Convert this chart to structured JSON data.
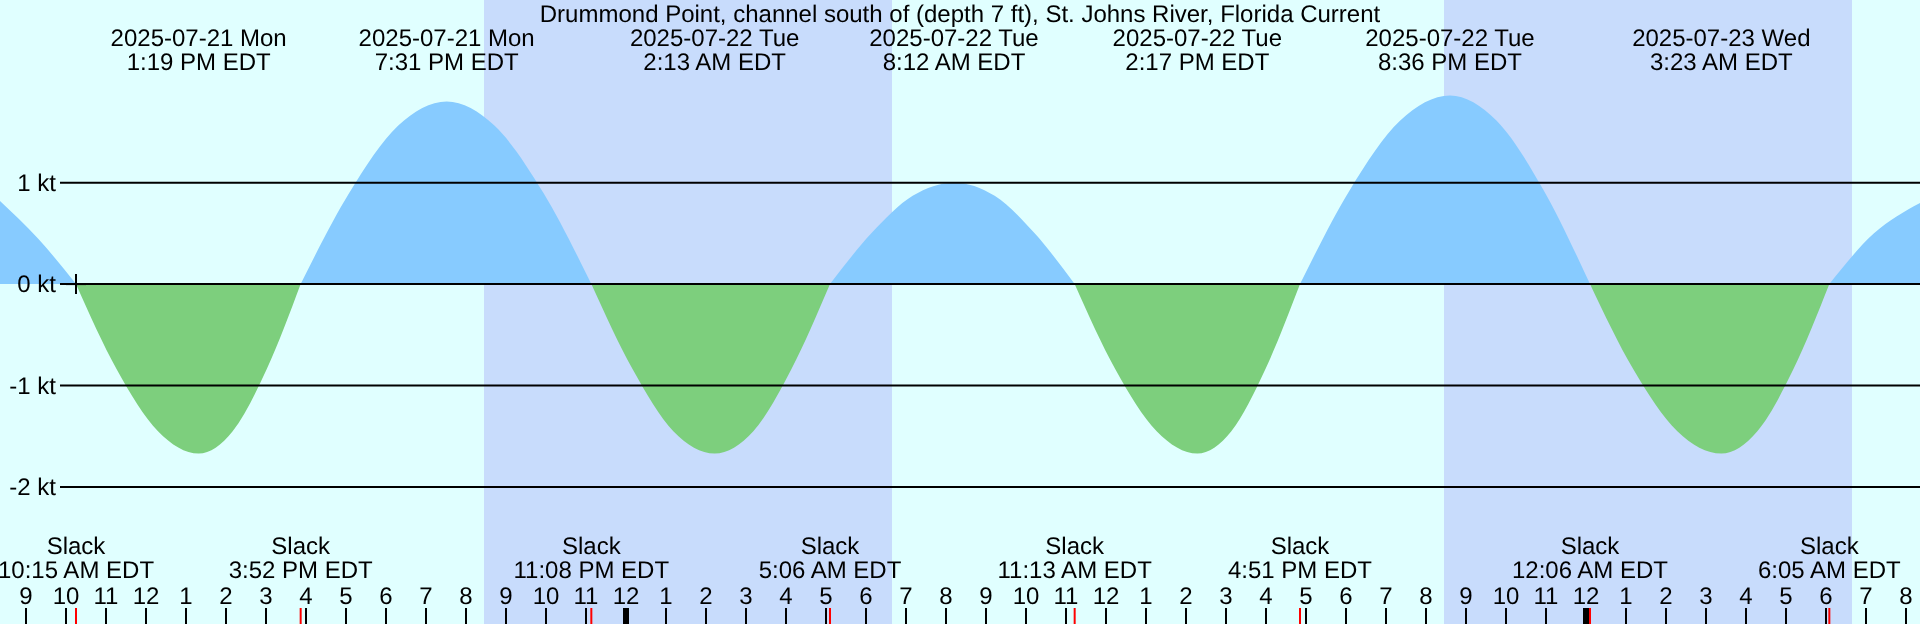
{
  "chart_data": {
    "type": "area",
    "title": "Drummond Point, channel south of (depth 7 ft), St. Johns River, Florida Current",
    "xlim": [
      "2025-07-21T08:21",
      "2025-07-23T08:21"
    ],
    "xticks": [
      {
        "value": "2025-07-21T09:00",
        "label": "9"
      },
      {
        "value": "2025-07-21T10:00",
        "label": "10"
      },
      {
        "value": "2025-07-21T11:00",
        "label": "11"
      },
      {
        "value": "2025-07-21T12:00",
        "label": "12"
      },
      {
        "value": "2025-07-21T13:00",
        "label": "1"
      },
      {
        "value": "2025-07-21T14:00",
        "label": "2"
      },
      {
        "value": "2025-07-21T15:00",
        "label": "3"
      },
      {
        "value": "2025-07-21T16:00",
        "label": "4"
      },
      {
        "value": "2025-07-21T17:00",
        "label": "5"
      },
      {
        "value": "2025-07-21T18:00",
        "label": "6"
      },
      {
        "value": "2025-07-21T19:00",
        "label": "7"
      },
      {
        "value": "2025-07-21T20:00",
        "label": "8"
      },
      {
        "value": "2025-07-21T21:00",
        "label": "9"
      },
      {
        "value": "2025-07-21T22:00",
        "label": "10"
      },
      {
        "value": "2025-07-21T23:00",
        "label": "11"
      },
      {
        "value": "2025-07-22T00:00",
        "label": "12"
      },
      {
        "value": "2025-07-22T01:00",
        "label": "1"
      },
      {
        "value": "2025-07-22T02:00",
        "label": "2"
      },
      {
        "value": "2025-07-22T03:00",
        "label": "3"
      },
      {
        "value": "2025-07-22T04:00",
        "label": "4"
      },
      {
        "value": "2025-07-22T05:00",
        "label": "5"
      },
      {
        "value": "2025-07-22T06:00",
        "label": "6"
      },
      {
        "value": "2025-07-22T07:00",
        "label": "7"
      },
      {
        "value": "2025-07-22T08:00",
        "label": "8"
      },
      {
        "value": "2025-07-22T09:00",
        "label": "9"
      },
      {
        "value": "2025-07-22T10:00",
        "label": "10"
      },
      {
        "value": "2025-07-22T11:00",
        "label": "11"
      },
      {
        "value": "2025-07-22T12:00",
        "label": "12"
      },
      {
        "value": "2025-07-22T13:00",
        "label": "1"
      },
      {
        "value": "2025-07-22T14:00",
        "label": "2"
      },
      {
        "value": "2025-07-22T15:00",
        "label": "3"
      },
      {
        "value": "2025-07-22T16:00",
        "label": "4"
      },
      {
        "value": "2025-07-22T17:00",
        "label": "5"
      },
      {
        "value": "2025-07-22T18:00",
        "label": "6"
      },
      {
        "value": "2025-07-22T19:00",
        "label": "7"
      },
      {
        "value": "2025-07-22T20:00",
        "label": "8"
      },
      {
        "value": "2025-07-22T21:00",
        "label": "9"
      },
      {
        "value": "2025-07-22T22:00",
        "label": "10"
      },
      {
        "value": "2025-07-22T23:00",
        "label": "11"
      },
      {
        "value": "2025-07-23T00:00",
        "label": "12"
      },
      {
        "value": "2025-07-23T01:00",
        "label": "1"
      },
      {
        "value": "2025-07-23T02:00",
        "label": "2"
      },
      {
        "value": "2025-07-23T03:00",
        "label": "3"
      },
      {
        "value": "2025-07-23T04:00",
        "label": "4"
      },
      {
        "value": "2025-07-23T05:00",
        "label": "5"
      },
      {
        "value": "2025-07-23T06:00",
        "label": "6"
      },
      {
        "value": "2025-07-23T07:00",
        "label": "7"
      },
      {
        "value": "2025-07-23T08:00",
        "label": "8"
      }
    ],
    "ylim": [
      -3.35,
      2.8
    ],
    "yticks": [
      {
        "value": 1,
        "label": "1 kt"
      },
      {
        "value": 0,
        "label": "0 kt"
      },
      {
        "value": -1,
        "label": "-1 kt"
      },
      {
        "value": -2,
        "label": "-2 kt"
      }
    ],
    "grid": "y",
    "x": [
      "2025-07-21T08:21",
      "2025-07-21T09:18",
      "2025-07-21T10:15",
      "2025-07-21T11:16",
      "2025-07-21T12:18",
      "2025-07-21T13:19",
      "2025-07-21T14:10",
      "2025-07-21T15:01",
      "2025-07-21T15:52",
      "2025-07-21T17:05",
      "2025-07-21T18:18",
      "2025-07-21T19:31",
      "2025-07-21T20:43",
      "2025-07-21T21:56",
      "2025-07-21T23:08",
      "2025-07-22T00:10",
      "2025-07-22T01:11",
      "2025-07-22T02:13",
      "2025-07-22T03:11",
      "2025-07-22T04:08",
      "2025-07-22T05:06",
      "2025-07-22T06:08",
      "2025-07-22T07:10",
      "2025-07-22T08:12",
      "2025-07-22T09:13",
      "2025-07-22T10:13",
      "2025-07-22T11:13",
      "2025-07-22T12:14",
      "2025-07-22T13:16",
      "2025-07-22T14:17",
      "2025-07-22T15:08",
      "2025-07-22T15:59",
      "2025-07-22T16:51",
      "2025-07-22T18:06",
      "2025-07-22T19:21",
      "2025-07-22T20:36",
      "2025-07-22T21:46",
      "2025-07-22T22:56",
      "2025-07-23T00:06",
      "2025-07-23T01:11",
      "2025-07-23T02:17",
      "2025-07-23T03:23",
      "2025-07-23T04:17",
      "2025-07-23T05:11",
      "2025-07-23T06:05",
      "2025-07-23T07:12",
      "2025-07-23T08:21"
    ],
    "series": [
      {
        "color": "#87cbff",
        "values": [
          0.82,
          0.45,
          0,
          null,
          null,
          null,
          null,
          null,
          0,
          0.9,
          1.56,
          1.8,
          1.56,
          0.9,
          0,
          null,
          null,
          null,
          null,
          null,
          0,
          0.5,
          0.87,
          1.0,
          0.87,
          0.5,
          0,
          null,
          null,
          null,
          null,
          null,
          0,
          0.93,
          1.61,
          1.86,
          1.61,
          0.93,
          0,
          null,
          null,
          null,
          null,
          null,
          0,
          0.5,
          0.8
        ]
      },
      {
        "color": "#7dcf7d",
        "values": [
          null,
          null,
          0,
          -0.84,
          -1.45,
          -1.67,
          -1.45,
          -0.84,
          0,
          null,
          null,
          null,
          null,
          null,
          0,
          -0.84,
          -1.45,
          -1.67,
          -1.45,
          -0.84,
          0,
          null,
          null,
          null,
          null,
          null,
          0,
          -0.84,
          -1.45,
          -1.67,
          -1.45,
          -0.84,
          0,
          null,
          null,
          null,
          null,
          null,
          0,
          -0.84,
          -1.45,
          -1.67,
          -1.45,
          -0.84,
          0,
          null,
          null
        ]
      }
    ],
    "bands": [
      {
        "axis": "x",
        "from": "2025-07-21T20:27",
        "to": "2025-07-22T06:39",
        "color": "#c8dcfc"
      },
      {
        "axis": "x",
        "from": "2025-07-22T20:27",
        "to": "2025-07-23T06:39",
        "color": "#c8dcfc"
      }
    ],
    "annotations": [
      "2025-07-21 Mon\n1:19 PM EDT",
      "2025-07-21 Mon\n7:31 PM EDT",
      "2025-07-22 Tue\n2:13 AM EDT",
      "2025-07-22 Tue\n8:12 AM EDT",
      "2025-07-22 Tue\n2:17 PM EDT",
      "2025-07-22 Tue\n8:36 PM EDT",
      "2025-07-23 Wed\n3:23 AM EDT",
      "Slack\n10:15 AM EDT",
      "Slack\n3:52 PM EDT",
      "Slack\n11:08 PM EDT",
      "Slack\n5:06 AM EDT",
      "Slack\n11:13 AM EDT",
      "Slack\n4:51 PM EDT",
      "Slack\n12:06 AM EDT",
      "Slack\n6:05 AM EDT"
    ]
  }
}
